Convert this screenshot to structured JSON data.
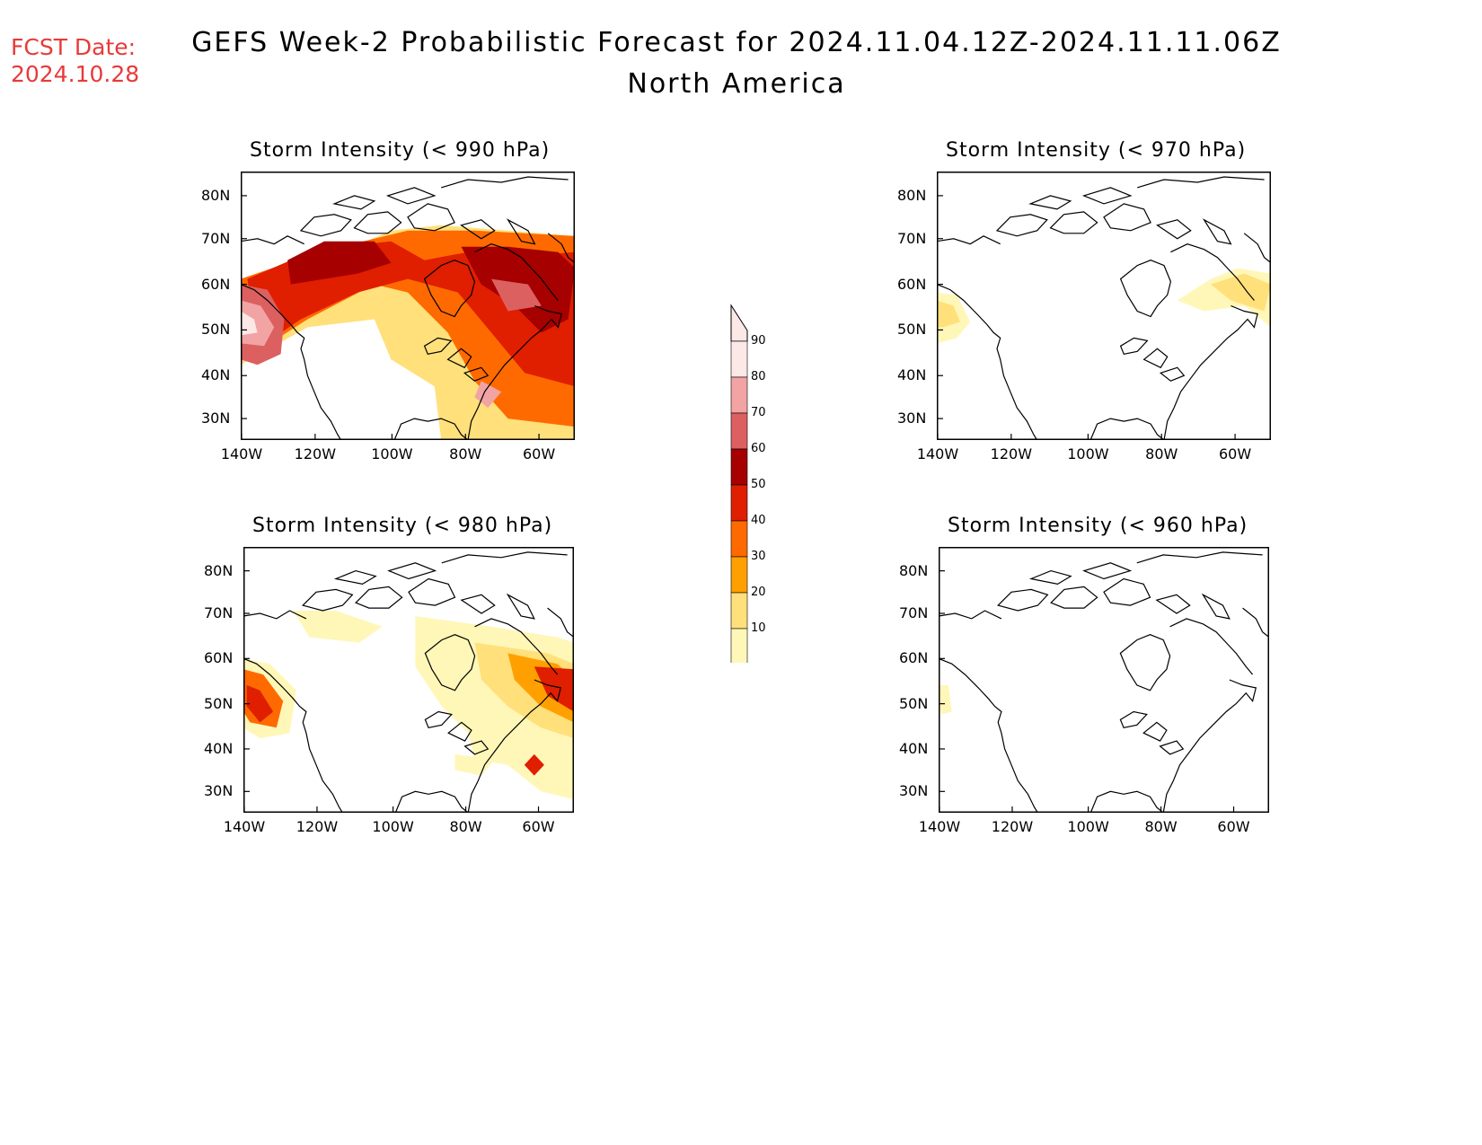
{
  "fcst_date_label": "FCST Date:",
  "fcst_date_value": "2024.10.28",
  "title_line1": "GEFS Week-2 Probabilistic Forecast for 2024.11.04.12Z-2024.11.11.06Z",
  "title_line2": "North America",
  "lat_ticks": [
    "80N",
    "70N",
    "60N",
    "50N",
    "40N",
    "30N"
  ],
  "lon_ticks": [
    "140W",
    "120W",
    "100W",
    "80W",
    "60W"
  ],
  "panels": [
    {
      "title": "Storm Intensity (< 990 hPa)"
    },
    {
      "title": "Storm Intensity (< 970 hPa)"
    },
    {
      "title": "Storm Intensity (< 980 hPa)"
    },
    {
      "title": "Storm Intensity (< 960 hPa)"
    }
  ],
  "colorbar": {
    "labels": [
      "90",
      "80",
      "70",
      "60",
      "50",
      "40",
      "30",
      "20",
      "10"
    ],
    "colors": [
      "#fde8e8",
      "#f2a3a3",
      "#dc6060",
      "#a60000",
      "#e01e00",
      "#ff6a00",
      "#ffa000",
      "#ffe07a",
      "#fff7b8"
    ]
  },
  "legend_colors": {
    "pale_yellow": "#fff7b8",
    "yellow": "#ffe07a",
    "orange": "#ffa000",
    "dark_orange": "#ff6a00",
    "red": "#e01e00",
    "dark_red": "#a60000",
    "rose": "#dc6060",
    "pink": "#f2a3a3",
    "light_pink": "#fde8e8"
  }
}
